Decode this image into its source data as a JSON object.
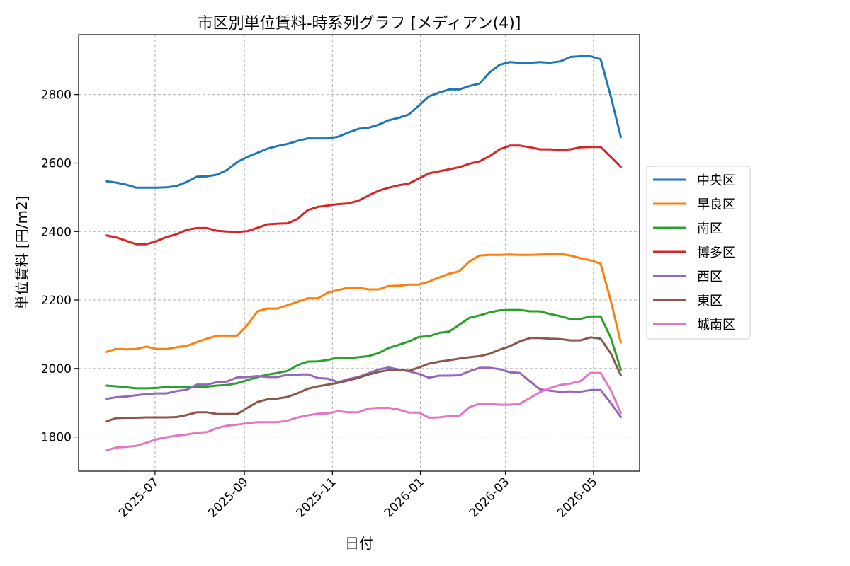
{
  "chart_data": {
    "type": "line",
    "title": "市区別単位賃料-時系列グラフ [メディアン(4)]",
    "xlabel": "日付",
    "ylabel": "単位賃料 [円/m2]",
    "x_ticks": [
      "2025-07",
      "2025-09",
      "2025-11",
      "2026-01",
      "2026-03",
      "2026-05"
    ],
    "y_ticks": [
      1800,
      2000,
      2200,
      2400,
      2600,
      2800
    ],
    "xlim": [
      "2025-05-09",
      "2026-06-02"
    ],
    "ylim": [
      1700,
      2975
    ],
    "grid": true,
    "legend_position": "right",
    "x": [
      "2025-05-28",
      "2025-06-04",
      "2025-06-11",
      "2025-06-18",
      "2025-06-25",
      "2025-07-02",
      "2025-07-09",
      "2025-07-16",
      "2025-07-23",
      "2025-07-30",
      "2025-08-06",
      "2025-08-13",
      "2025-08-20",
      "2025-08-27",
      "2025-09-03",
      "2025-09-10",
      "2025-09-17",
      "2025-09-24",
      "2025-10-01",
      "2025-10-08",
      "2025-10-15",
      "2025-10-22",
      "2025-10-29",
      "2025-11-05",
      "2025-11-12",
      "2025-11-19",
      "2025-11-26",
      "2025-12-03",
      "2025-12-10",
      "2025-12-17",
      "2025-12-24",
      "2025-12-31",
      "2026-01-07",
      "2026-01-14",
      "2026-01-21",
      "2026-01-28",
      "2026-02-04",
      "2026-02-11",
      "2026-02-18",
      "2026-02-25",
      "2026-03-04",
      "2026-03-11",
      "2026-03-18",
      "2026-03-25",
      "2026-04-01",
      "2026-04-08",
      "2026-04-15",
      "2026-04-22",
      "2026-04-29",
      "2026-05-06",
      "2026-05-13",
      "2026-05-20"
    ],
    "series": [
      {
        "name": "中央区",
        "color": "#1f77b4",
        "values": [
          2547,
          2543,
          2537,
          2528,
          2528,
          2528,
          2529,
          2533,
          2545,
          2560,
          2561,
          2566,
          2580,
          2603,
          2618,
          2630,
          2642,
          2650,
          2656,
          2665,
          2672,
          2672,
          2672,
          2677,
          2689,
          2700,
          2703,
          2712,
          2725,
          2732,
          2742,
          2768,
          2795,
          2806,
          2815,
          2815,
          2825,
          2832,
          2865,
          2887,
          2895,
          2893,
          2893,
          2895,
          2893,
          2897,
          2910,
          2912,
          2912,
          2903,
          2795,
          2676
        ]
      },
      {
        "name": "早良区",
        "color": "#ff7f0e",
        "values": [
          2048,
          2057,
          2056,
          2057,
          2064,
          2057,
          2057,
          2062,
          2066,
          2077,
          2087,
          2096,
          2096,
          2096,
          2127,
          2167,
          2175,
          2175,
          2185,
          2195,
          2205,
          2205,
          2222,
          2229,
          2236,
          2236,
          2231,
          2231,
          2241,
          2242,
          2245,
          2245,
          2254,
          2266,
          2277,
          2284,
          2313,
          2330,
          2332,
          2332,
          2333,
          2332,
          2332,
          2333,
          2334,
          2335,
          2330,
          2322,
          2316,
          2306,
          2198,
          2076
        ]
      },
      {
        "name": "南区",
        "color": "#2ca02c",
        "values": [
          1950,
          1948,
          1945,
          1942,
          1942,
          1943,
          1946,
          1946,
          1946,
          1947,
          1947,
          1950,
          1952,
          1957,
          1966,
          1975,
          1982,
          1987,
          1993,
          2010,
          2020,
          2021,
          2025,
          2032,
          2030,
          2033,
          2036,
          2045,
          2060,
          2069,
          2079,
          2092,
          2094,
          2104,
          2108,
          2128,
          2148,
          2155,
          2164,
          2170,
          2171,
          2171,
          2167,
          2167,
          2159,
          2153,
          2144,
          2145,
          2152,
          2152,
          2090,
          1997
        ]
      },
      {
        "name": "博多区",
        "color": "#d62728",
        "values": [
          2389,
          2383,
          2373,
          2363,
          2363,
          2372,
          2384,
          2392,
          2405,
          2410,
          2410,
          2402,
          2400,
          2399,
          2401,
          2411,
          2421,
          2423,
          2424,
          2437,
          2463,
          2472,
          2476,
          2480,
          2482,
          2490,
          2505,
          2519,
          2528,
          2535,
          2540,
          2555,
          2570,
          2576,
          2582,
          2588,
          2598,
          2605,
          2620,
          2640,
          2651,
          2651,
          2646,
          2640,
          2640,
          2638,
          2640,
          2646,
          2647,
          2647,
          2618,
          2589
        ]
      },
      {
        "name": "西区",
        "color": "#9467bd",
        "values": [
          1911,
          1916,
          1918,
          1922,
          1925,
          1927,
          1927,
          1934,
          1938,
          1953,
          1953,
          1960,
          1962,
          1974,
          1975,
          1978,
          1975,
          1975,
          1982,
          1982,
          1983,
          1972,
          1970,
          1960,
          1969,
          1975,
          1986,
          1997,
          2003,
          1997,
          1992,
          1984,
          1973,
          1979,
          1979,
          1980,
          1992,
          2002,
          2002,
          1998,
          1989,
          1987,
          1962,
          1939,
          1935,
          1932,
          1933,
          1932,
          1937,
          1937,
          1899,
          1858
        ]
      },
      {
        "name": "東区",
        "color": "#8c564b",
        "values": [
          1845,
          1855,
          1856,
          1856,
          1857,
          1857,
          1857,
          1858,
          1864,
          1872,
          1872,
          1867,
          1867,
          1867,
          1885,
          1902,
          1910,
          1912,
          1917,
          1928,
          1941,
          1948,
          1953,
          1958,
          1965,
          1973,
          1982,
          1990,
          1995,
          1997,
          1993,
          2003,
          2014,
          2020,
          2024,
          2029,
          2033,
          2036,
          2043,
          2055,
          2065,
          2079,
          2089,
          2089,
          2087,
          2086,
          2082,
          2082,
          2091,
          2087,
          2044,
          1980
        ]
      },
      {
        "name": "城南区",
        "color": "#e377c2",
        "values": [
          1760,
          1769,
          1771,
          1774,
          1783,
          1793,
          1799,
          1804,
          1807,
          1812,
          1814,
          1826,
          1833,
          1836,
          1840,
          1843,
          1843,
          1843,
          1848,
          1857,
          1863,
          1868,
          1869,
          1875,
          1872,
          1872,
          1883,
          1885,
          1885,
          1880,
          1871,
          1871,
          1856,
          1857,
          1861,
          1861,
          1887,
          1897,
          1897,
          1894,
          1894,
          1897,
          1914,
          1931,
          1943,
          1952,
          1956,
          1963,
          1987,
          1987,
          1937,
          1870
        ]
      }
    ]
  }
}
